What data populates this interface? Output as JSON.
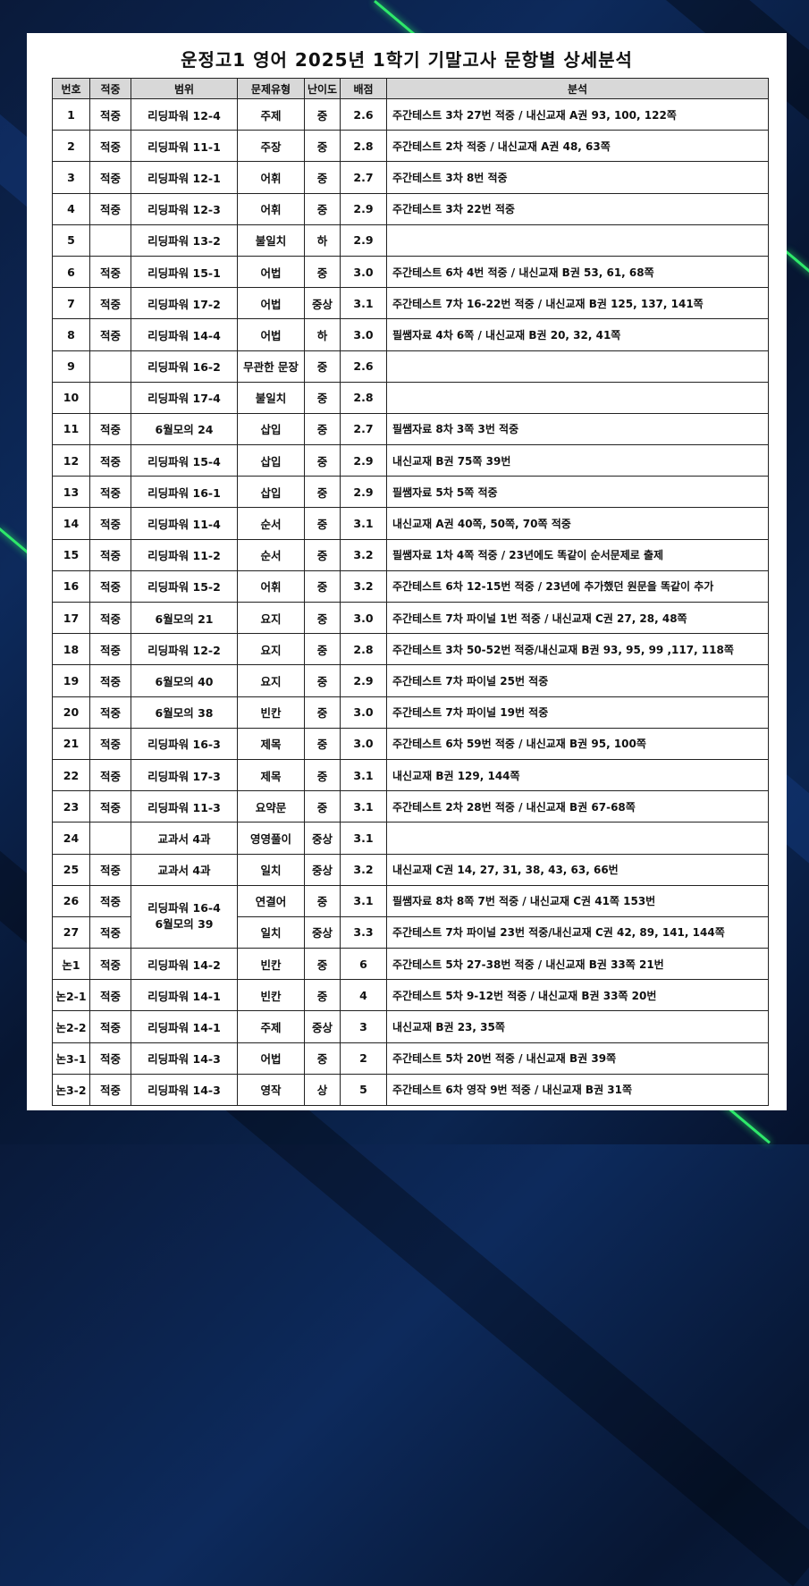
{
  "title": "운정고1 영어 2025년 1학기 기말고사 문항별 상세분석",
  "headers": [
    "번호",
    "적중",
    "범위",
    "문제유형",
    "난이도",
    "배점",
    "분석"
  ],
  "rows": [
    {
      "no": "1",
      "hit": "적중",
      "range": "리딩파워 12-4",
      "type": "주제",
      "level": "중",
      "score": "2.6",
      "analysis": "주간테스트 3차 27번 적중  / 내신교재 A권 93, 100, 122쪽"
    },
    {
      "no": "2",
      "hit": "적중",
      "range": "리딩파워 11-1",
      "type": "주장",
      "level": "중",
      "score": "2.8",
      "analysis": "주간테스트 2차 적중  / 내신교재 A권 48, 63쪽"
    },
    {
      "no": "3",
      "hit": "적중",
      "range": "리딩파워 12-1",
      "type": "어휘",
      "level": "중",
      "score": "2.7",
      "analysis": "주간테스트 3차 8번 적중"
    },
    {
      "no": "4",
      "hit": "적중",
      "range": "리딩파워 12-3",
      "type": "어휘",
      "level": "중",
      "score": "2.9",
      "analysis": "주간테스트 3차 22번 적중"
    },
    {
      "no": "5",
      "hit": "",
      "range": "리딩파워 13-2",
      "type": "불일치",
      "level": "하",
      "score": "2.9",
      "analysis": ""
    },
    {
      "no": "6",
      "hit": "적중",
      "range": "리딩파워 15-1",
      "type": "어법",
      "level": "중",
      "score": "3.0",
      "analysis": "주간테스트 6차 4번 적중 / 내신교재 B권 53, 61, 68쪽"
    },
    {
      "no": "7",
      "hit": "적중",
      "range": "리딩파워 17-2",
      "type": "어법",
      "level": "중상",
      "score": "3.1",
      "analysis": "주간테스트 7차 16-22번 적중 / 내신교재 B권 125, 137, 141쪽"
    },
    {
      "no": "8",
      "hit": "적중",
      "range": "리딩파워 14-4",
      "type": "어법",
      "level": "하",
      "score": "3.0",
      "analysis": "필쌤자료 4차 6쪽 / 내신교재 B권 20, 32, 41쪽"
    },
    {
      "no": "9",
      "hit": "",
      "range": "리딩파워 16-2",
      "type": "무관한 문장",
      "level": "중",
      "score": "2.6",
      "analysis": ""
    },
    {
      "no": "10",
      "hit": "",
      "range": "리딩파워 17-4",
      "type": "불일치",
      "level": "중",
      "score": "2.8",
      "analysis": ""
    },
    {
      "no": "11",
      "hit": "적중",
      "range": "6월모의 24",
      "type": "삽입",
      "level": "중",
      "score": "2.7",
      "analysis": "필쌤자료 8차 3쪽 3번 적중"
    },
    {
      "no": "12",
      "hit": "적중",
      "range": "리딩파워 15-4",
      "type": "삽입",
      "level": "중",
      "score": "2.9",
      "analysis": "내신교재 B권 75쪽 39번"
    },
    {
      "no": "13",
      "hit": "적중",
      "range": "리딩파워 16-1",
      "type": "삽입",
      "level": "중",
      "score": "2.9",
      "analysis": "필쌤자료 5차 5쪽 적중"
    },
    {
      "no": "14",
      "hit": "적중",
      "range": "리딩파워 11-4",
      "type": "순서",
      "level": "중",
      "score": "3.1",
      "analysis": "내신교재 A권 40쪽, 50쪽, 70쪽 적중"
    },
    {
      "no": "15",
      "hit": "적중",
      "range": "리딩파워 11-2",
      "type": "순서",
      "level": "중",
      "score": "3.2",
      "analysis": "필쌤자료 1차 4쪽 적중 / 23년에도 똑같이 순서문제로 출제"
    },
    {
      "no": "16",
      "hit": "적중",
      "range": "리딩파워 15-2",
      "type": "어휘",
      "level": "중",
      "score": "3.2",
      "analysis": "주간테스트 6차 12-15번 적중 / 23년에 추가했던 원문을 똑같이 추가"
    },
    {
      "no": "17",
      "hit": "적중",
      "range": "6월모의 21",
      "type": "요지",
      "level": "중",
      "score": "3.0",
      "analysis": "주간테스트 7차 파이널 1번 적중 / 내신교재 C권 27, 28, 48쪽"
    },
    {
      "no": "18",
      "hit": "적중",
      "range": "리딩파워 12-2",
      "type": "요지",
      "level": "중",
      "score": "2.8",
      "analysis": "주간테스트 3차 50-52번 적중/내신교재 B권 93, 95, 99 ,117, 118쪽"
    },
    {
      "no": "19",
      "hit": "적중",
      "range": "6월모의 40",
      "type": "요지",
      "level": "중",
      "score": "2.9",
      "analysis": "주간테스트 7차 파이널 25번 적중"
    },
    {
      "no": "20",
      "hit": "적중",
      "range": "6월모의 38",
      "type": "빈칸",
      "level": "중",
      "score": "3.0",
      "analysis": "주간테스트 7차 파이널 19번 적중"
    },
    {
      "no": "21",
      "hit": "적중",
      "range": "리딩파워 16-3",
      "type": "제목",
      "level": "중",
      "score": "3.0",
      "analysis": "주간테스트 6차 59번 적중 / 내신교재 B권 95, 100쪽"
    },
    {
      "no": "22",
      "hit": "적중",
      "range": "리딩파워 17-3",
      "type": "제목",
      "level": "중",
      "score": "3.1",
      "analysis": "내신교재 B권 129, 144쪽"
    },
    {
      "no": "23",
      "hit": "적중",
      "range": "리딩파워 11-3",
      "type": "요약문",
      "level": "중",
      "score": "3.1",
      "analysis": "주간테스트 2차 28번 적중 / 내신교재 B권 67-68쪽"
    },
    {
      "no": "24",
      "hit": "",
      "range": "교과서 4과",
      "type": "영영풀이",
      "level": "중상",
      "score": "3.1",
      "analysis": ""
    },
    {
      "no": "25",
      "hit": "적중",
      "range": "교과서 4과",
      "type": "일치",
      "level": "중상",
      "score": "3.2",
      "analysis": "내신교재 C권 14, 27, 31, 38, 43, 63, 66번"
    },
    {
      "no": "26",
      "hit": "적중",
      "range": "리딩파워 16-4",
      "type": "연결어",
      "level": "중",
      "score": "3.1",
      "analysis": "필쌤자료 8차 8쪽 7번 적중 / 내신교재 C권 41쪽 153번",
      "merge_range_with_next": true
    },
    {
      "no": "27",
      "hit": "적중",
      "range": "6월모의 39",
      "type": "일치",
      "level": "중상",
      "score": "3.3",
      "analysis": "주간테스트 7차 파이널 23번 적중/내신교재 C권 42, 89, 141, 144쪽"
    },
    {
      "no": "논1",
      "hit": "적중",
      "range": "리딩파워 14-2",
      "type": "빈칸",
      "level": "중",
      "score": "6",
      "analysis": "주간테스트 5차 27-38번 적중 / 내신교재 B권 33쪽 21번"
    },
    {
      "no": "논2-1",
      "hit": "적중",
      "range": "리딩파워 14-1",
      "type": "빈칸",
      "level": "중",
      "score": "4",
      "analysis": "주간테스트 5차 9-12번 적중 / 내신교재 B권 33쪽 20번"
    },
    {
      "no": "논2-2",
      "hit": "적중",
      "range": "리딩파워 14-1",
      "type": "주제",
      "level": "중상",
      "score": "3",
      "analysis": "내신교재 B권 23, 35쪽"
    },
    {
      "no": "논3-1",
      "hit": "적중",
      "range": "리딩파워 14-3",
      "type": "어법",
      "level": "중",
      "score": "2",
      "analysis": "주간테스트 5차 20번 적중 / 내신교재 B권 39쪽"
    },
    {
      "no": "논3-2",
      "hit": "적중",
      "range": "리딩파워 14-3",
      "type": "영작",
      "level": "상",
      "score": "5",
      "analysis": "주간테스트 6차 영작 9번 적중 / 내신교재 B권 31쪽"
    }
  ],
  "colors": {
    "header_bg": "#d8d8d8",
    "background": "#0d2a5c",
    "accent_glow": "#2ee86a"
  }
}
